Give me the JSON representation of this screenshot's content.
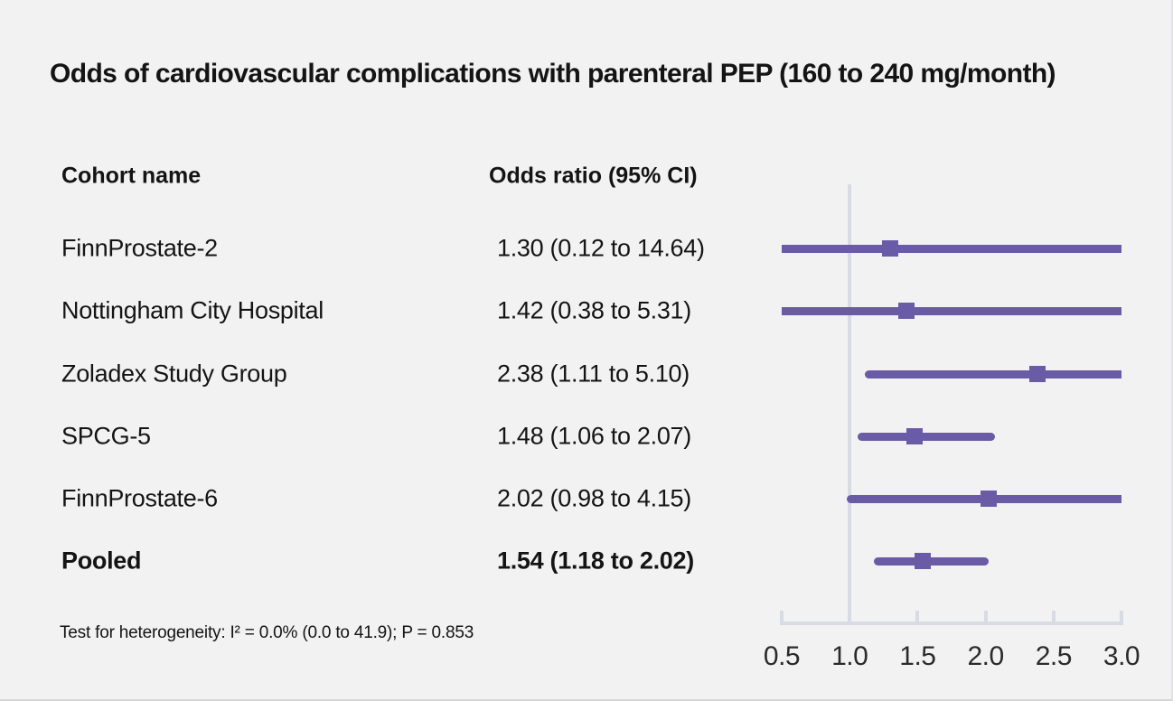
{
  "title": "Odds of cardiovascular complications with parenteral PEP (160 to 240 mg/month)",
  "table": {
    "cohort_header": "Cohort name",
    "or_header": "Odds ratio (95% CI)"
  },
  "footnote": "Test for heterogeneity: I² = 0.0% (0.0 to 41.9); P = 0.853",
  "chart_data": {
    "type": "scatter",
    "subtype": "forest-plot",
    "scale": "linear",
    "xlim": [
      0.5,
      3.0
    ],
    "x_ticks": [
      0.5,
      1.0,
      1.5,
      2.0,
      2.5,
      3.0
    ],
    "x_tick_labels": [
      "0.5",
      "1.0",
      "1.5",
      "2.0",
      "2.5",
      "3.0"
    ],
    "reference_line_x": 1.0,
    "legend": "none",
    "grid": "off",
    "series": [
      {
        "name": "FinnProstate-2",
        "estimate": 1.3,
        "ci_low": 0.12,
        "ci_high": 14.64,
        "label": "1.30 (0.12 to 14.64)",
        "pooled": false
      },
      {
        "name": "Nottingham City Hospital",
        "estimate": 1.42,
        "ci_low": 0.38,
        "ci_high": 5.31,
        "label": "1.42 (0.38 to 5.31)",
        "pooled": false
      },
      {
        "name": "Zoladex Study Group",
        "estimate": 2.38,
        "ci_low": 1.11,
        "ci_high": 5.1,
        "label": "2.38 (1.11 to 5.10)",
        "pooled": false
      },
      {
        "name": "SPCG-5",
        "estimate": 1.48,
        "ci_low": 1.06,
        "ci_high": 2.07,
        "label": "1.48 (1.06 to 2.07)",
        "pooled": false
      },
      {
        "name": "FinnProstate-6",
        "estimate": 2.02,
        "ci_low": 0.98,
        "ci_high": 4.15,
        "label": "2.02 (0.98 to 4.15)",
        "pooled": false
      },
      {
        "name": "Pooled",
        "estimate": 1.54,
        "ci_low": 1.18,
        "ci_high": 2.02,
        "label": "1.54 (1.18 to 2.02)",
        "pooled": true
      }
    ],
    "colors": {
      "marker": "#6a5ba7",
      "axis_line": "#d8dbe3",
      "background": "#f2f2f3",
      "text": "#141414"
    }
  }
}
